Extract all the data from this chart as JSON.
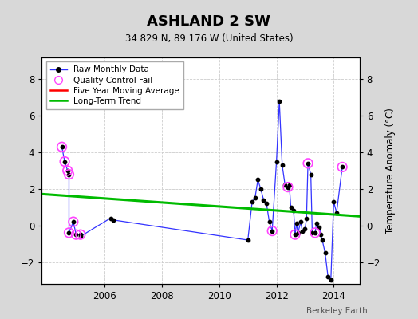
{
  "title": "ASHLAND 2 SW",
  "subtitle": "34.829 N, 89.176 W (United States)",
  "ylabel": "Temperature Anomaly (°C)",
  "credit": "Berkeley Earth",
  "background_color": "#d8d8d8",
  "plot_bg_color": "#ffffff",
  "ylim": [
    -3.2,
    9.2
  ],
  "xlim": [
    2003.8,
    2014.9
  ],
  "xticks": [
    2006,
    2008,
    2010,
    2012,
    2014
  ],
  "yticks": [
    -2,
    0,
    2,
    4,
    6,
    8
  ],
  "raw_data": [
    [
      2004.5,
      4.3
    ],
    [
      2004.6,
      3.5
    ],
    [
      2004.7,
      3.0
    ],
    [
      2004.75,
      2.8
    ],
    [
      2004.75,
      -0.4
    ],
    [
      2004.9,
      0.2
    ],
    [
      2005.0,
      -0.5
    ],
    [
      2005.15,
      -0.5
    ],
    [
      2005.15,
      -0.6
    ],
    [
      2006.2,
      0.4
    ],
    [
      2006.3,
      0.3
    ],
    [
      2011.0,
      -0.8
    ],
    [
      2011.15,
      1.3
    ],
    [
      2011.25,
      1.5
    ],
    [
      2011.35,
      2.5
    ],
    [
      2011.45,
      2.0
    ],
    [
      2011.55,
      1.4
    ],
    [
      2011.65,
      1.2
    ],
    [
      2011.75,
      0.2
    ],
    [
      2011.85,
      -0.3
    ],
    [
      2012.0,
      3.5
    ],
    [
      2012.1,
      6.8
    ],
    [
      2012.2,
      3.3
    ],
    [
      2012.3,
      2.2
    ],
    [
      2012.4,
      2.1
    ],
    [
      2012.45,
      2.2
    ],
    [
      2012.5,
      1.0
    ],
    [
      2012.6,
      0.8
    ],
    [
      2012.65,
      -0.5
    ],
    [
      2012.7,
      0.1
    ],
    [
      2012.75,
      -0.4
    ],
    [
      2012.85,
      0.2
    ],
    [
      2012.9,
      -0.3
    ],
    [
      2013.0,
      -0.2
    ],
    [
      2013.05,
      0.4
    ],
    [
      2013.1,
      3.4
    ],
    [
      2013.2,
      2.8
    ],
    [
      2013.25,
      -0.4
    ],
    [
      2013.35,
      -0.4
    ],
    [
      2013.4,
      0.1
    ],
    [
      2013.5,
      -0.1
    ],
    [
      2013.55,
      -0.5
    ],
    [
      2013.6,
      -0.8
    ],
    [
      2013.7,
      -1.5
    ],
    [
      2013.8,
      -2.8
    ],
    [
      2013.9,
      -3.0
    ],
    [
      2014.0,
      1.3
    ],
    [
      2014.1,
      0.7
    ],
    [
      2014.3,
      3.2
    ]
  ],
  "qc_fail_points": [
    [
      2004.5,
      4.3
    ],
    [
      2004.6,
      3.5
    ],
    [
      2004.7,
      3.0
    ],
    [
      2004.75,
      2.8
    ],
    [
      2004.75,
      -0.4
    ],
    [
      2004.9,
      0.2
    ],
    [
      2005.0,
      -0.5
    ],
    [
      2005.15,
      -0.5
    ],
    [
      2011.85,
      -0.3
    ],
    [
      2012.4,
      2.1
    ],
    [
      2012.65,
      -0.5
    ],
    [
      2013.1,
      3.4
    ],
    [
      2013.35,
      -0.4
    ],
    [
      2014.3,
      3.2
    ]
  ],
  "trend_x": [
    2003.8,
    2014.9
  ],
  "trend_y": [
    1.72,
    0.5
  ],
  "raw_color": "#3333ff",
  "raw_marker_color": "#000000",
  "qc_color": "#ff44ff",
  "trend_color": "#00bb00",
  "moving_avg_color": "#ff0000"
}
